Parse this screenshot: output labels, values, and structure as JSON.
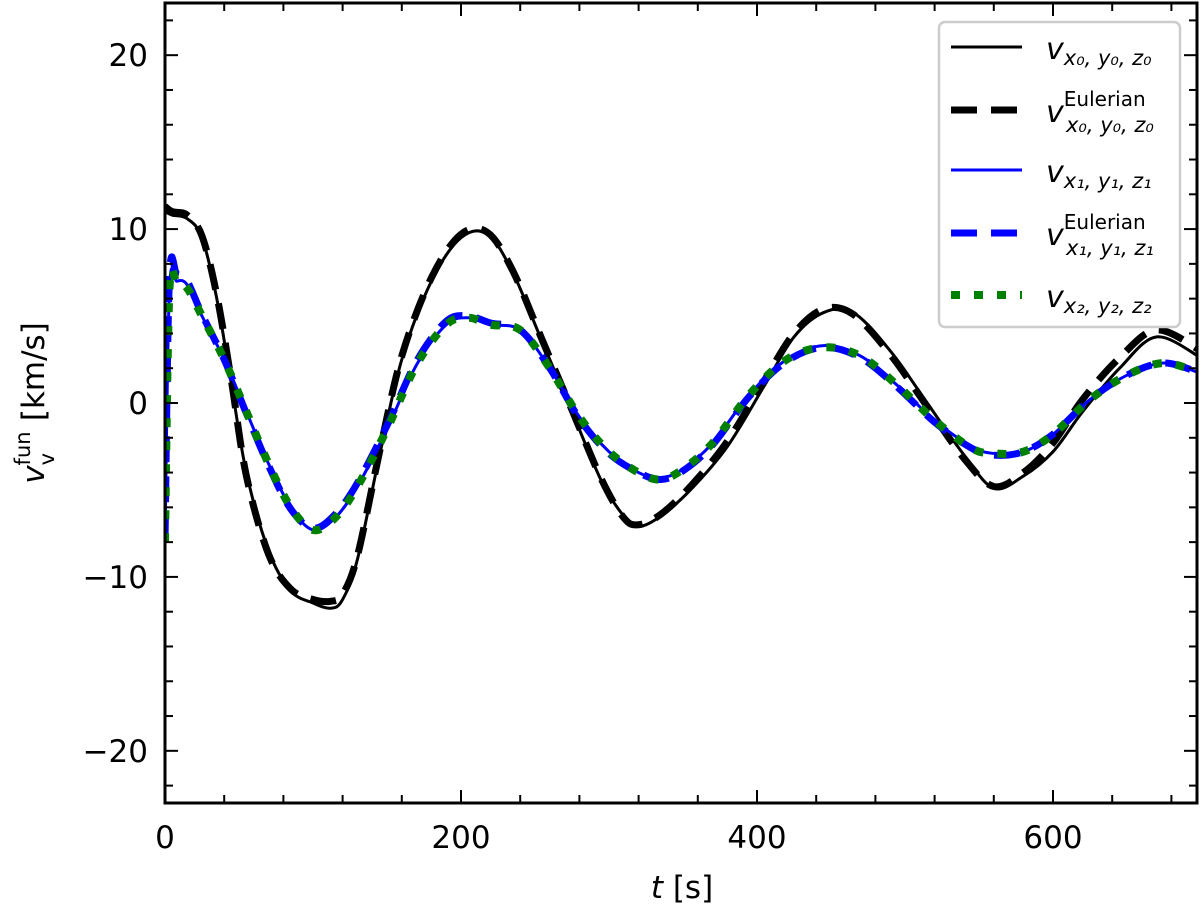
{
  "chart_data": {
    "type": "line",
    "title": "",
    "xlabel": "t [s]",
    "ylabel": "v_v^fun [km/s]",
    "xlim": [
      0,
      700
    ],
    "ylim": [
      -23,
      23
    ],
    "xticks": [
      0,
      200,
      400,
      600
    ],
    "xtick_labels": [
      "0",
      "200",
      "400",
      "600"
    ],
    "yticks": [
      -20,
      -10,
      0,
      10,
      20
    ],
    "ytick_labels": [
      "−20",
      "−10",
      "0",
      "10",
      "20"
    ],
    "grid": false,
    "legend_position": "upper right",
    "series": [
      {
        "name": "v_{x0,y0,z0}",
        "label_main": "v",
        "label_sub": "x₀, y₀, z₀",
        "label_sup": "",
        "color": "#000000",
        "style": "solid",
        "width": 3,
        "x": [
          0,
          5,
          15,
          25,
          35,
          45,
          55,
          70,
          85,
          100,
          112,
          120,
          130,
          145,
          160,
          180,
          200,
          218,
          235,
          255,
          275,
          295,
          310,
          320,
          335,
          355,
          380,
          405,
          425,
          445,
          465,
          490,
          515,
          540,
          560,
          580,
          600,
          620,
          645,
          670,
          700
        ],
        "y": [
          11,
          10.8,
          10.6,
          9.5,
          6,
          1,
          -4,
          -8.5,
          -10.8,
          -11.5,
          -11.8,
          -11.3,
          -9,
          -3,
          2.5,
          7,
          9.5,
          9.7,
          7.5,
          3.5,
          -0.5,
          -4.5,
          -6.5,
          -7.1,
          -6.5,
          -5,
          -2.5,
          1,
          3.8,
          5.2,
          5.2,
          3,
          0,
          -3,
          -4.9,
          -4.2,
          -2.8,
          -0.5,
          2,
          3.8,
          2.6
        ]
      },
      {
        "name": "v_{x0,y0,z0}^Eulerian",
        "label_main": "v",
        "label_sub": "x₀, y₀, z₀",
        "label_sup": "Eulerian",
        "color": "#000000",
        "style": "dashed",
        "width": 7,
        "x": [
          0,
          5,
          15,
          25,
          35,
          45,
          55,
          70,
          85,
          100,
          112,
          120,
          130,
          145,
          160,
          180,
          200,
          218,
          235,
          255,
          275,
          295,
          310,
          320,
          335,
          355,
          380,
          405,
          425,
          445,
          465,
          490,
          515,
          540,
          560,
          580,
          600,
          620,
          645,
          670,
          700
        ],
        "y": [
          11.3,
          11,
          10.8,
          9.6,
          6.2,
          1.2,
          -4.2,
          -8.7,
          -10.7,
          -11.3,
          -11.4,
          -11,
          -8.8,
          -2.8,
          2.7,
          7.2,
          9.7,
          9.8,
          7.6,
          3.6,
          -0.4,
          -4.4,
          -6.6,
          -7.0,
          -6.4,
          -4.8,
          -2.2,
          1.3,
          4.0,
          5.4,
          5.1,
          2.8,
          -0.2,
          -3.2,
          -4.8,
          -4.0,
          -2.3,
          0.2,
          2.6,
          4.2,
          3.0
        ]
      },
      {
        "name": "v_{x1,y1,z1}",
        "label_main": "v",
        "label_sub": "x₁, y₁, z₁",
        "label_sup": "",
        "color": "#0000ff",
        "style": "solid",
        "width": 3,
        "x": [
          0,
          3,
          8,
          15,
          25,
          40,
          55,
          70,
          85,
          100,
          115,
          130,
          150,
          170,
          190,
          205,
          220,
          240,
          260,
          280,
          300,
          320,
          335,
          350,
          370,
          395,
          420,
          445,
          470,
          495,
          520,
          545,
          560,
          580,
          600,
          625,
          650,
          675,
          700
        ],
        "y": [
          -8,
          6.5,
          7,
          6.8,
          5,
          2.5,
          -0.5,
          -3.5,
          -6,
          -7.3,
          -6.6,
          -4.8,
          -1.5,
          2.2,
          4.5,
          4.9,
          4.5,
          4.2,
          2,
          -0.8,
          -2.8,
          -4,
          -4.3,
          -3.8,
          -2.3,
          0.5,
          2.5,
          3.3,
          2.7,
          1,
          -1,
          -2.5,
          -2.9,
          -2.8,
          -1.8,
          0.2,
          1.6,
          2.3,
          1.7
        ]
      },
      {
        "name": "v_{x1,y1,z1}^Eulerian",
        "label_main": "v",
        "label_sub": "x₁, y₁, z₁",
        "label_sup": "Eulerian",
        "color": "#0000ff",
        "style": "dashed",
        "width": 7,
        "x": [
          0,
          3,
          8,
          15,
          25,
          40,
          55,
          70,
          85,
          100,
          115,
          130,
          150,
          170,
          190,
          205,
          220,
          240,
          260,
          280,
          300,
          320,
          335,
          350,
          370,
          395,
          420,
          445,
          470,
          495,
          520,
          545,
          560,
          580,
          600,
          625,
          650,
          675,
          700
        ],
        "y": [
          -8,
          7.2,
          7.4,
          7.0,
          5.1,
          2.5,
          -0.6,
          -3.6,
          -6.1,
          -7.2,
          -6.4,
          -4.6,
          -1.3,
          2.4,
          4.7,
          5.0,
          4.6,
          4.2,
          2.0,
          -0.9,
          -2.9,
          -4.0,
          -4.4,
          -3.9,
          -2.4,
          0.4,
          2.4,
          3.2,
          2.6,
          0.9,
          -1.1,
          -2.6,
          -3.0,
          -2.8,
          -1.8,
          0.2,
          1.6,
          2.3,
          1.7
        ]
      },
      {
        "name": "v_{x2,y2,z2}",
        "label_main": "v",
        "label_sub": "x₂, y₂, z₂",
        "label_sup": "",
        "color": "#008000",
        "style": "dotted",
        "width": 8,
        "x": [
          0,
          3,
          8,
          15,
          25,
          40,
          55,
          70,
          85,
          100,
          115,
          130,
          150,
          170,
          190,
          205,
          220,
          240,
          260,
          280,
          300,
          320,
          335,
          350,
          370,
          395,
          420,
          445,
          470,
          495,
          520,
          545,
          560,
          580,
          600,
          625,
          650,
          675,
          700
        ],
        "y": [
          -8,
          6.5,
          6.9,
          6.6,
          5,
          2.5,
          -0.5,
          -3.5,
          -6,
          -7.3,
          -6.6,
          -4.8,
          -1.5,
          2.2,
          4.5,
          4.9,
          4.5,
          4.2,
          2,
          -0.8,
          -2.8,
          -4,
          -4.4,
          -3.8,
          -2.3,
          0.5,
          2.5,
          3.2,
          2.7,
          1,
          -1,
          -2.6,
          -2.9,
          -2.8,
          -1.8,
          0.2,
          1.6,
          2.3,
          1.7
        ]
      }
    ]
  },
  "axes": {
    "xlabel_italic": "t",
    "xlabel_unit": " [s]",
    "ylabel_main": "v",
    "ylabel_sup": "fun",
    "ylabel_sub": "v",
    "ylabel_unit": " [km/s]"
  }
}
